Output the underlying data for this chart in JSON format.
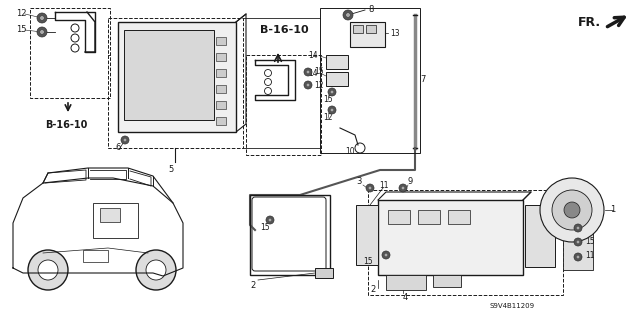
{
  "bg_color": "#ffffff",
  "lc": "#1a1a1a",
  "part_code": "S9V4B11209",
  "b1610": "B-16-10",
  "fr_label": "FR.",
  "figsize": [
    6.4,
    3.19
  ],
  "dpi": 100
}
